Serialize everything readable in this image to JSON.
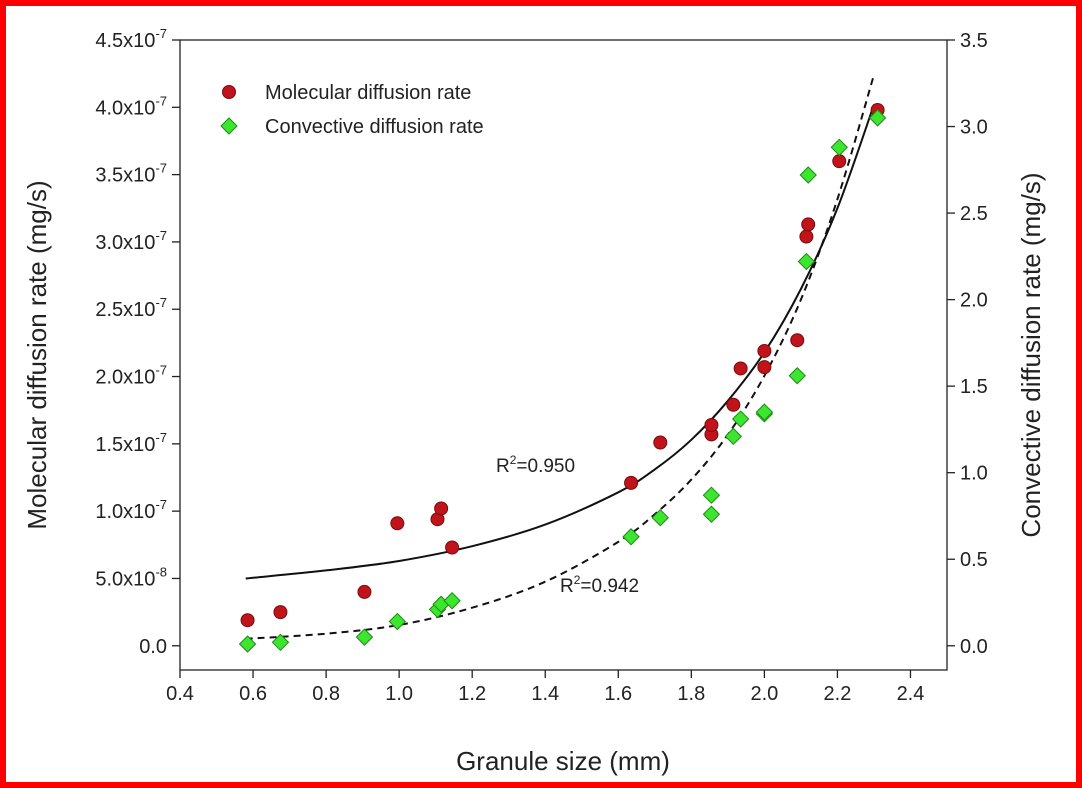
{
  "chart_data": {
    "type": "scatter",
    "title": "",
    "xlabel": "Granule size (mm)",
    "ylabel_left": "Molecular diffusion rate (mg/s)",
    "ylabel_right": "Convective diffusion rate (mg/s)",
    "xlim": [
      0.4,
      2.5
    ],
    "ylim_left": [
      -1.8e-08,
      4.5e-07
    ],
    "ylim_right": [
      -0.14,
      3.5
    ],
    "x_ticks": [
      "0.4",
      "0.6",
      "0.8",
      "1.0",
      "1.2",
      "1.4",
      "1.6",
      "1.8",
      "2.0",
      "2.2",
      "2.4"
    ],
    "y_left_ticks": [
      {
        "value": 0,
        "mantissa": "0.0",
        "exp": ""
      },
      {
        "value": 5e-08,
        "mantissa": "5.0x10",
        "exp": "-8"
      },
      {
        "value": 1e-07,
        "mantissa": "1.0x10",
        "exp": "-7"
      },
      {
        "value": 1.5e-07,
        "mantissa": "1.5x10",
        "exp": "-7"
      },
      {
        "value": 2e-07,
        "mantissa": "2.0x10",
        "exp": "-7"
      },
      {
        "value": 2.5e-07,
        "mantissa": "2.5x10",
        "exp": "-7"
      },
      {
        "value": 3e-07,
        "mantissa": "3.0x10",
        "exp": "-7"
      },
      {
        "value": 3.5e-07,
        "mantissa": "3.5x10",
        "exp": "-7"
      },
      {
        "value": 4e-07,
        "mantissa": "4.0x10",
        "exp": "-7"
      },
      {
        "value": 4.5e-07,
        "mantissa": "4.5x10",
        "exp": "-7"
      }
    ],
    "y_right_ticks": [
      "0.0",
      "0.5",
      "1.0",
      "1.5",
      "2.0",
      "2.5",
      "3.0",
      "3.5"
    ],
    "legend_position": "top-left",
    "grid": false,
    "series": [
      {
        "name": "Molecular diffusion rate",
        "axis": "left",
        "marker": "circle",
        "color": "#c0141a",
        "points": [
          [
            0.585,
            1.9e-08
          ],
          [
            0.675,
            2.5e-08
          ],
          [
            0.905,
            4e-08
          ],
          [
            0.995,
            9.1e-08
          ],
          [
            1.105,
            9.4e-08
          ],
          [
            1.115,
            1.02e-07
          ],
          [
            1.145,
            7.3e-08
          ],
          [
            1.635,
            1.21e-07
          ],
          [
            1.715,
            1.51e-07
          ],
          [
            1.855,
            1.57e-07
          ],
          [
            1.855,
            1.64e-07
          ],
          [
            1.915,
            1.79e-07
          ],
          [
            1.935,
            2.06e-07
          ],
          [
            2.0,
            2.07e-07
          ],
          [
            2.0,
            2.19e-07
          ],
          [
            2.09,
            2.27e-07
          ],
          [
            2.115,
            3.04e-07
          ],
          [
            2.12,
            3.13e-07
          ],
          [
            2.205,
            3.6e-07
          ],
          [
            2.31,
            3.98e-07
          ]
        ]
      },
      {
        "name": "Convective diffusion rate",
        "axis": "right",
        "marker": "diamond",
        "color": "#3ce62e",
        "points": [
          [
            0.585,
            0.01
          ],
          [
            0.675,
            0.02
          ],
          [
            0.905,
            0.05
          ],
          [
            0.995,
            0.14
          ],
          [
            1.105,
            0.21
          ],
          [
            1.115,
            0.24
          ],
          [
            1.145,
            0.26
          ],
          [
            1.635,
            0.63
          ],
          [
            1.715,
            0.74
          ],
          [
            1.855,
            0.76
          ],
          [
            1.855,
            0.87
          ],
          [
            1.915,
            1.21
          ],
          [
            1.935,
            1.31
          ],
          [
            2.0,
            1.34
          ],
          [
            2.0,
            1.35
          ],
          [
            2.09,
            1.56
          ],
          [
            2.115,
            2.22
          ],
          [
            2.12,
            2.72
          ],
          [
            2.205,
            2.88
          ],
          [
            2.31,
            3.05
          ]
        ]
      }
    ],
    "fits": [
      {
        "series": "Molecular diffusion rate",
        "style": "solid",
        "r2_label": "R",
        "r2_sup": "2",
        "r2_value": "=0.950",
        "x": [
          0.58,
          0.8,
          1.0,
          1.2,
          1.4,
          1.6,
          1.7,
          1.8,
          1.9,
          2.0,
          2.1,
          2.2,
          2.3
        ],
        "y": [
          5e-08,
          5.6e-08,
          6.3e-08,
          7.4e-08,
          9e-08,
          1.14e-07,
          1.31e-07,
          1.53e-07,
          1.82e-07,
          2.18e-07,
          2.65e-07,
          3.25e-07,
          4.02e-07
        ]
      },
      {
        "series": "Convective diffusion rate",
        "style": "dashed",
        "r2_label": "R",
        "r2_sup": "2",
        "r2_value": "=0.942",
        "x": [
          0.58,
          0.8,
          1.0,
          1.2,
          1.4,
          1.6,
          1.7,
          1.8,
          1.9,
          2.0,
          2.1,
          2.2,
          2.3
        ],
        "y": [
          0.04,
          0.07,
          0.12,
          0.22,
          0.37,
          0.6,
          0.76,
          0.96,
          1.22,
          1.56,
          2.0,
          2.58,
          3.3
        ]
      }
    ]
  }
}
